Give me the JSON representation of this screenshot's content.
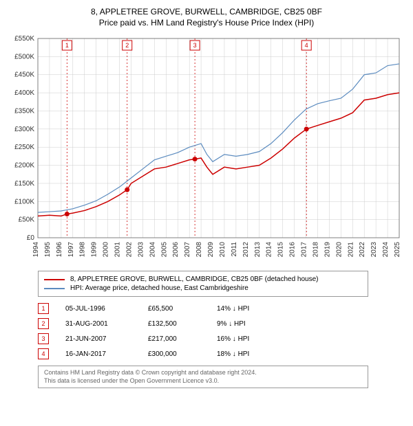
{
  "title": "8, APPLETREE GROVE, BURWELL, CAMBRIDGE, CB25 0BF",
  "subtitle": "Price paid vs. HM Land Registry's House Price Index (HPI)",
  "chart": {
    "type": "line",
    "background_color": "#ffffff",
    "grid_color": "#cccccc",
    "axis_color": "#666666",
    "label_fontsize": 10,
    "label_color": "#333333",
    "xlim": [
      1994,
      2025
    ],
    "ylim": [
      0,
      550000
    ],
    "ytick_step": 50000,
    "ytick_labels": [
      "£0",
      "£50K",
      "£100K",
      "£150K",
      "£200K",
      "£250K",
      "£300K",
      "£350K",
      "£400K",
      "£450K",
      "£500K",
      "£550K"
    ],
    "xtick_step": 1,
    "xtick_labels": [
      "1994",
      "1995",
      "1996",
      "1997",
      "1998",
      "1999",
      "2000",
      "2001",
      "2002",
      "2003",
      "2004",
      "2005",
      "2006",
      "2007",
      "2008",
      "2009",
      "2010",
      "2011",
      "2012",
      "2013",
      "2014",
      "2015",
      "2016",
      "2017",
      "2018",
      "2019",
      "2020",
      "2021",
      "2022",
      "2023",
      "2024",
      "2025"
    ],
    "marker_line_color": "#cc0000",
    "marker_dash": "2,3",
    "series": [
      {
        "name": "property",
        "color": "#cc0000",
        "width": 1.5,
        "points": [
          [
            1994,
            60000
          ],
          [
            1995,
            62000
          ],
          [
            1996,
            60000
          ],
          [
            1996.5,
            65500
          ],
          [
            1997,
            68000
          ],
          [
            1998,
            75000
          ],
          [
            1999,
            86000
          ],
          [
            2000,
            100000
          ],
          [
            2001,
            118000
          ],
          [
            2001.66,
            132500
          ],
          [
            2002,
            150000
          ],
          [
            2003,
            170000
          ],
          [
            2004,
            190000
          ],
          [
            2005,
            195000
          ],
          [
            2006,
            205000
          ],
          [
            2007,
            215000
          ],
          [
            2007.47,
            217000
          ],
          [
            2008,
            220000
          ],
          [
            2008.5,
            195000
          ],
          [
            2009,
            175000
          ],
          [
            2010,
            195000
          ],
          [
            2011,
            190000
          ],
          [
            2012,
            195000
          ],
          [
            2013,
            200000
          ],
          [
            2014,
            220000
          ],
          [
            2015,
            245000
          ],
          [
            2016,
            275000
          ],
          [
            2017.04,
            300000
          ],
          [
            2018,
            310000
          ],
          [
            2019,
            320000
          ],
          [
            2020,
            330000
          ],
          [
            2021,
            345000
          ],
          [
            2022,
            380000
          ],
          [
            2023,
            385000
          ],
          [
            2024,
            395000
          ],
          [
            2025,
            400000
          ]
        ]
      },
      {
        "name": "hpi",
        "color": "#5b8bbf",
        "width": 1.2,
        "points": [
          [
            1994,
            70000
          ],
          [
            1995,
            72000
          ],
          [
            1996,
            74000
          ],
          [
            1997,
            80000
          ],
          [
            1998,
            90000
          ],
          [
            1999,
            102000
          ],
          [
            2000,
            120000
          ],
          [
            2001,
            140000
          ],
          [
            2002,
            165000
          ],
          [
            2003,
            190000
          ],
          [
            2004,
            215000
          ],
          [
            2005,
            225000
          ],
          [
            2006,
            235000
          ],
          [
            2007,
            250000
          ],
          [
            2008,
            260000
          ],
          [
            2008.5,
            230000
          ],
          [
            2009,
            210000
          ],
          [
            2010,
            230000
          ],
          [
            2011,
            225000
          ],
          [
            2012,
            230000
          ],
          [
            2013,
            238000
          ],
          [
            2014,
            260000
          ],
          [
            2015,
            290000
          ],
          [
            2016,
            325000
          ],
          [
            2017,
            355000
          ],
          [
            2018,
            370000
          ],
          [
            2019,
            378000
          ],
          [
            2020,
            385000
          ],
          [
            2021,
            410000
          ],
          [
            2022,
            450000
          ],
          [
            2023,
            455000
          ],
          [
            2024,
            475000
          ],
          [
            2025,
            480000
          ]
        ]
      }
    ],
    "markers": [
      {
        "n": "1",
        "x": 1996.5,
        "y": 65500
      },
      {
        "n": "2",
        "x": 2001.66,
        "y": 132500
      },
      {
        "n": "3",
        "x": 2007.47,
        "y": 217000
      },
      {
        "n": "4",
        "x": 2017.04,
        "y": 300000
      }
    ]
  },
  "legend": {
    "items": [
      {
        "color": "#cc0000",
        "label": "8, APPLETREE GROVE, BURWELL, CAMBRIDGE, CB25 0BF (detached house)"
      },
      {
        "color": "#5b8bbf",
        "label": "HPI: Average price, detached house, East Cambridgeshire"
      }
    ]
  },
  "transactions": [
    {
      "n": "1",
      "date": "05-JUL-1996",
      "price": "£65,500",
      "diff": "14% ↓ HPI"
    },
    {
      "n": "2",
      "date": "31-AUG-2001",
      "price": "£132,500",
      "diff": "9% ↓ HPI"
    },
    {
      "n": "3",
      "date": "21-JUN-2007",
      "price": "£217,000",
      "diff": "16% ↓ HPI"
    },
    {
      "n": "4",
      "date": "16-JAN-2017",
      "price": "£300,000",
      "diff": "18% ↓ HPI"
    }
  ],
  "footer": {
    "line1": "Contains HM Land Registry data © Crown copyright and database right 2024.",
    "line2": "This data is licensed under the Open Government Licence v3.0."
  }
}
